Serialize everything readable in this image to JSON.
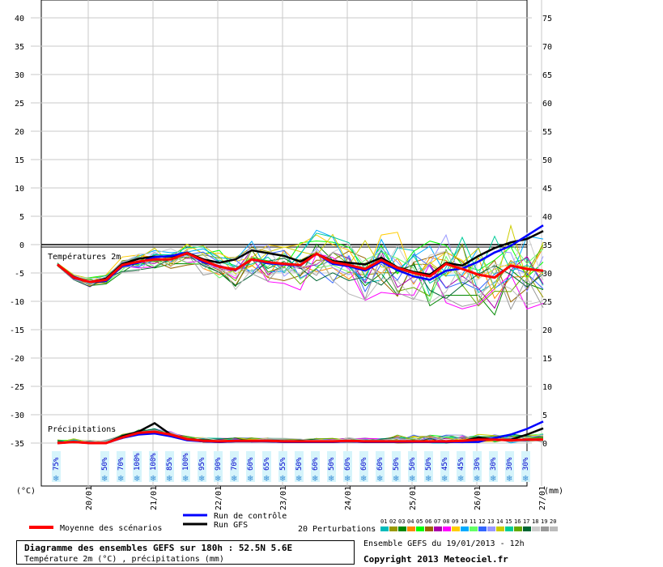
{
  "chart_data": {
    "type": "line",
    "title": "Diagramme des ensembles GEFS sur 180h : 52.5N 5.6E",
    "subtitle": "Température 2m (°C) , précipitations (mm)",
    "source": "Ensemble GEFS du 19/01/2013 - 12h",
    "copyright": "Copyright 2013 Meteociel.fr",
    "left_axis_unit": "(°C)",
    "right_axis_unit": "(mm)",
    "left_ticks": [
      40,
      35,
      30,
      25,
      20,
      15,
      10,
      5,
      0,
      -5,
      -10,
      -15,
      -20,
      -25,
      -30,
      -35
    ],
    "right_ticks": [
      75,
      70,
      65,
      60,
      55,
      50,
      45,
      40,
      35,
      30,
      25,
      20,
      15,
      10,
      5,
      0
    ],
    "ylim": [
      -35,
      40
    ],
    "right_ylim": [
      0,
      75
    ],
    "x_dates": [
      "20/01",
      "21/01",
      "22/01",
      "23/01",
      "24/01",
      "25/01",
      "26/01",
      "27/01"
    ],
    "x_hours": [
      0,
      6,
      12,
      18,
      24,
      30,
      36,
      42,
      48,
      54,
      60,
      66,
      72,
      78,
      84,
      90,
      96,
      102,
      108,
      114,
      120,
      126,
      132,
      138,
      144,
      150,
      156,
      162,
      168,
      174,
      180
    ],
    "annotations": {
      "temperatures": "Températures 2m",
      "precipitations": "Précipitations"
    },
    "snow_probabilities": [
      {
        "hour": 24,
        "label": "75%"
      },
      {
        "hour": 48,
        "label": "50%"
      },
      {
        "hour": 54,
        "label": "70%"
      },
      {
        "hour": 60,
        "label": "100%"
      },
      {
        "hour": 66,
        "label": "100%"
      },
      {
        "hour": 72,
        "label": "85%"
      },
      {
        "hour": 78,
        "label": "100%"
      },
      {
        "hour": 84,
        "label": "95%"
      },
      {
        "hour": 90,
        "label": "90%"
      },
      {
        "hour": 96,
        "label": "70%"
      },
      {
        "hour": 102,
        "label": "60%"
      },
      {
        "hour": 108,
        "label": "65%"
      },
      {
        "hour": 114,
        "label": "55%"
      },
      {
        "hour": 120,
        "label": "50%"
      },
      {
        "hour": 126,
        "label": "60%"
      },
      {
        "hour": 132,
        "label": "50%"
      },
      {
        "hour": 138,
        "label": "60%"
      },
      {
        "hour": 144,
        "label": "60%"
      },
      {
        "hour": 150,
        "label": "60%"
      },
      {
        "hour": 156,
        "label": "50%"
      },
      {
        "hour": 162,
        "label": "50%"
      },
      {
        "hour": 168,
        "label": "50%"
      },
      {
        "hour": 174,
        "label": "45%"
      },
      {
        "hour": 180,
        "label": "45%"
      },
      {
        "hour": 186,
        "label": "30%"
      },
      {
        "hour": 192,
        "label": "30%"
      },
      {
        "hour": 198,
        "label": "30%"
      },
      {
        "hour": 204,
        "label": "30%"
      }
    ],
    "series": [
      {
        "name": "Moyenne des scénarios",
        "color": "#ff0000",
        "temperature": [
          -3.5,
          -5.8,
          -6.6,
          -6.2,
          -3.6,
          -3.0,
          -2.6,
          -2.6,
          -1.5,
          -2.8,
          -3.9,
          -4.4,
          -2.6,
          -3.1,
          -3.4,
          -3.6,
          -1.6,
          -3.1,
          -3.6,
          -4.3,
          -2.7,
          -4.1,
          -5.0,
          -5.6,
          -3.4,
          -4.3,
          -5.3,
          -5.8,
          -3.7,
          -4.3,
          -4.6
        ],
        "precipitation": [
          0,
          0.2,
          0,
          0,
          1.0,
          1.8,
          2.0,
          1.5,
          0.7,
          0.4,
          0.3,
          0.4,
          0.4,
          0.4,
          0.3,
          0.3,
          0.3,
          0.3,
          0.4,
          0.3,
          0.3,
          0.3,
          0.3,
          0.3,
          0.3,
          0.4,
          0.6,
          0.6,
          0.5,
          0.6,
          0.6
        ]
      },
      {
        "name": "Run de contrôle",
        "color": "#0000ff",
        "temperature": [
          -3.5,
          -5.9,
          -6.6,
          -6.4,
          -3.8,
          -3.2,
          -2.2,
          -2.0,
          -1.4,
          -3.1,
          -3.8,
          -4.5,
          -2.6,
          -3.3,
          -3.5,
          -3.7,
          -1.6,
          -3.4,
          -3.8,
          -4.6,
          -3.0,
          -4.5,
          -5.6,
          -6.2,
          -4.6,
          -4.2,
          -3.0,
          -1.4,
          -0.2,
          1.6,
          3.4
        ],
        "precipitation": [
          0,
          0.2,
          0,
          0,
          0.9,
          1.5,
          1.7,
          1.2,
          0.5,
          0.3,
          0.2,
          0.3,
          0.3,
          0.3,
          0.2,
          0.2,
          0.2,
          0.2,
          0.3,
          0.2,
          0.2,
          0.2,
          0.2,
          0.2,
          0.2,
          0.2,
          0.2,
          0.9,
          1.5,
          2.5,
          3.8
        ]
      },
      {
        "name": "Run GFS",
        "color": "#000000",
        "temperature": [
          -3.5,
          -5.7,
          -6.6,
          -6.0,
          -3.4,
          -2.5,
          -2.1,
          -2.1,
          -1.4,
          -2.6,
          -3.2,
          -2.6,
          -1.0,
          -1.5,
          -2.0,
          -3.0,
          -1.6,
          -2.9,
          -3.2,
          -3.5,
          -2.3,
          -4.0,
          -4.8,
          -5.3,
          -3.2,
          -3.7,
          -2.0,
          -0.6,
          0.4,
          1.0,
          2.4
        ],
        "precipitation": [
          0,
          0.2,
          0,
          0,
          1.2,
          2.0,
          3.5,
          1.5,
          0.6,
          0.3,
          0.2,
          0.3,
          0.3,
          0.3,
          0.2,
          0.2,
          0.2,
          0.2,
          0.3,
          0.2,
          0.2,
          0.2,
          0.2,
          0.2,
          0.2,
          0.3,
          1.0,
          0.6,
          0.6,
          1.5,
          2.6
        ]
      }
    ],
    "legend": {
      "mean": "Moyenne des scénarios",
      "control": "Run de contrôle",
      "gfs": "Run GFS",
      "perturbations_label": "20 Perturbations",
      "perturbations": [
        {
          "id": "01",
          "color": "#00bbbb"
        },
        {
          "id": "02",
          "color": "#999900"
        },
        {
          "id": "03",
          "color": "#008800"
        },
        {
          "id": "04",
          "color": "#ff8800"
        },
        {
          "id": "05",
          "color": "#00ff00"
        },
        {
          "id": "06",
          "color": "#996600"
        },
        {
          "id": "07",
          "color": "#aa00aa"
        },
        {
          "id": "08",
          "color": "#ff00ff"
        },
        {
          "id": "09",
          "color": "#ffcc00"
        },
        {
          "id": "10",
          "color": "#00aaff"
        },
        {
          "id": "11",
          "color": "#66ff66"
        },
        {
          "id": "12",
          "color": "#3366ff"
        },
        {
          "id": "13",
          "color": "#9999ff"
        },
        {
          "id": "14",
          "color": "#cccc00"
        },
        {
          "id": "15",
          "color": "#00cc99"
        },
        {
          "id": "16",
          "color": "#66aa00"
        },
        {
          "id": "17",
          "color": "#006633"
        },
        {
          "id": "18",
          "color": "#cccccc"
        },
        {
          "id": "19",
          "color": "#999999"
        },
        {
          "id": "20",
          "color": "#bbbbbb"
        }
      ]
    }
  }
}
